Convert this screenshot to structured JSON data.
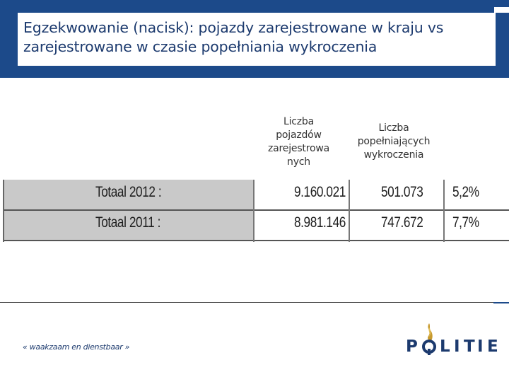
{
  "slide": {
    "title": "Egzekwowanie (nacisk): pojazdy zarejestrowane w kraju vs zarejestrowane w czasie popełniania wykroczenia",
    "colors": {
      "band": "#1c4a8a",
      "row_fill": "#c9c9c9",
      "title_text": "#1c3a6e"
    }
  },
  "table": {
    "headers": {
      "registered": "Liczba pojazdów zarejestrowa nych",
      "offenders": "Liczba popełniających wykroczenia"
    },
    "rows": [
      {
        "label": "Totaal 2012 :",
        "registered": "9.160.021",
        "offenders": "501.073",
        "percent": "5,2%"
      },
      {
        "label": "Totaal 2011 :",
        "registered": "8.981.146",
        "offenders": "747.672",
        "percent": "7,7%"
      }
    ]
  },
  "footer": {
    "slogan": "« waakzaam en dienstbaar »",
    "logo_letters": [
      "P",
      "L",
      "I",
      "T",
      "I",
      "E"
    ],
    "logo_icon": "police-flame-emblem-icon"
  }
}
